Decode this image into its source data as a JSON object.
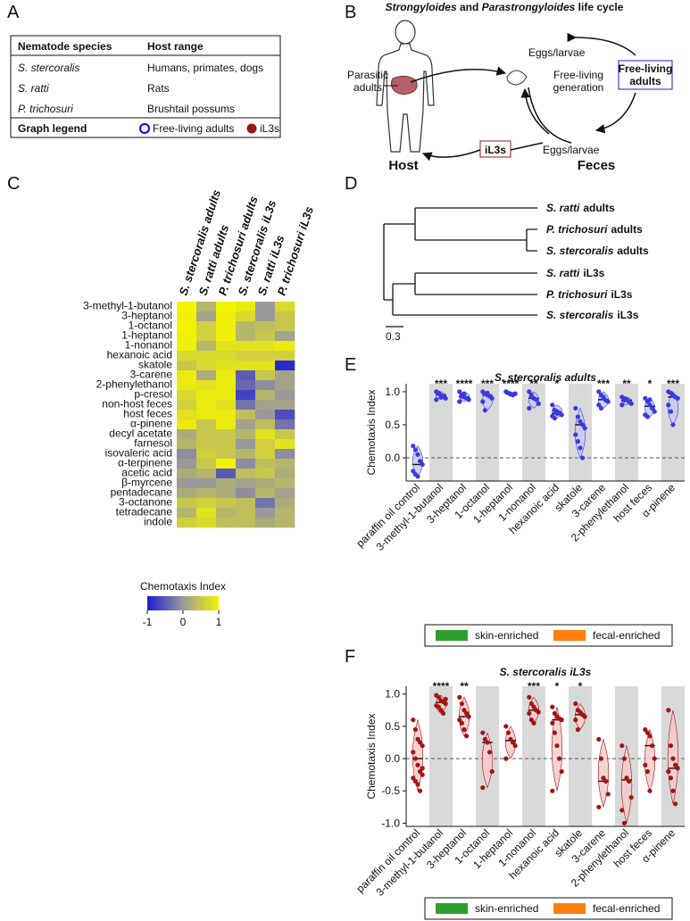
{
  "panel_labels": [
    "A",
    "B",
    "C",
    "D",
    "E",
    "F"
  ],
  "table": {
    "headers": [
      "Nematode species",
      "Host range"
    ],
    "rows": [
      [
        "S. stercoralis",
        "Humans, primates, dogs"
      ],
      [
        "S. ratti",
        "Rats"
      ],
      [
        "P. trichosuri",
        "Brushtail possums"
      ]
    ],
    "legend_title": "Graph legend",
    "legend_items": [
      {
        "label": "Free-living adults",
        "color": "#1a1adb"
      },
      {
        "label": "iL3s",
        "color": "#a31515"
      }
    ]
  },
  "life_cycle": {
    "title_parts": [
      "Strongyloides",
      " and ",
      "Parastrongyloides",
      " life cycle"
    ],
    "parasitic_adults": [
      "Parasitic",
      "adults"
    ],
    "eggs_larvae_top": "Eggs/larvae",
    "free_living_generation": [
      "Free-living",
      "generation"
    ],
    "free_living_adults": [
      "Free-living",
      "adults"
    ],
    "il3s": "iL3s",
    "eggs_larvae_bottom": "Eggs/larvae",
    "host": "Host",
    "feces": "Feces"
  },
  "tree": {
    "leaves": [
      {
        "species": "S. ratti",
        "stage": "adults",
        "color": "#1a1adb"
      },
      {
        "species": "P. trichosuri",
        "stage": "adults",
        "color": "#1a1adb"
      },
      {
        "species": "S. stercoralis",
        "stage": "adults",
        "color": "#1a1adb"
      },
      {
        "species": "S. ratti",
        "stage": "iL3s",
        "color": "#a31515"
      },
      {
        "species": "P. trichosuri",
        "stage": "iL3s",
        "color": "#a31515"
      },
      {
        "species": "S. stercoralis",
        "stage": "iL3s",
        "color": "#a31515"
      }
    ],
    "scale_label": "0.3"
  },
  "chart_data": [
    {
      "type": "heatmap",
      "columns": [
        "S. stercoralis adults",
        "S. ratti adults",
        "P. trichosuri adults",
        "S. stercoralis iL3s",
        "S. ratti iL3s",
        "P. trichosuri iL3s"
      ],
      "column_colors": [
        "#1a1adb",
        "#1a1adb",
        "#1a1adb",
        "#a31515",
        "#a31515",
        "#a31515"
      ],
      "rows": [
        "3-methyl-1-butanol",
        "3-heptanol",
        "1-octanol",
        "1-heptanol",
        "1-nonanol",
        "hexanoic acid",
        "skatole",
        "3-carene",
        "2-phenylethanol",
        "p-cresol",
        "non-host feces",
        "host feces",
        "α-pinene",
        "decyl acetate",
        "farnesol",
        "isovaleric acid",
        "α-terpinene",
        "acetic acid",
        "β-myrcene",
        "pentadecane",
        "3-octanone",
        "tetradecane",
        "indole"
      ],
      "values": [
        [
          1.0,
          0.3,
          1.0,
          0.9,
          0.0,
          0.7
        ],
        [
          0.95,
          0.1,
          0.95,
          0.7,
          0.0,
          0.5
        ],
        [
          1.0,
          0.6,
          0.95,
          0.3,
          0.4,
          0.5
        ],
        [
          0.95,
          0.6,
          0.95,
          0.3,
          0.5,
          0.1
        ],
        [
          0.95,
          0.3,
          0.8,
          0.8,
          0.8,
          0.9
        ],
        [
          0.7,
          0.7,
          0.7,
          0.6,
          0.6,
          0.6
        ],
        [
          0.5,
          0.7,
          0.8,
          0.8,
          0.8,
          -0.9
        ],
        [
          0.9,
          0.2,
          0.9,
          -0.5,
          0.5,
          0.1
        ],
        [
          0.9,
          0.8,
          0.9,
          -0.4,
          -0.1,
          0.1
        ],
        [
          0.7,
          0.9,
          0.9,
          -0.7,
          0.3,
          0.0
        ],
        [
          0.6,
          0.9,
          0.8,
          -0.3,
          0.1,
          0.1
        ],
        [
          0.8,
          0.9,
          0.9,
          0.4,
          0.0,
          -0.6
        ],
        [
          0.9,
          0.5,
          0.9,
          0.1,
          0.4,
          -0.3
        ],
        [
          0.2,
          0.5,
          0.5,
          0.3,
          0.8,
          0.5
        ],
        [
          0.3,
          0.5,
          0.5,
          0.0,
          0.6,
          0.8
        ],
        [
          -0.1,
          0.6,
          0.5,
          0.3,
          0.6,
          -0.1
        ],
        [
          0.0,
          0.5,
          1.0,
          -0.1,
          0.4,
          0.3
        ],
        [
          0.2,
          0.3,
          -0.5,
          0.4,
          0.5,
          0.2
        ],
        [
          0.0,
          0.0,
          0.2,
          0.1,
          0.2,
          0.3
        ],
        [
          0.2,
          0.3,
          0.2,
          -0.1,
          0.3,
          0.1
        ],
        [
          0.5,
          0.6,
          0.5,
          0.4,
          -0.3,
          0.2
        ],
        [
          0.3,
          0.8,
          0.3,
          0.4,
          0.0,
          0.3
        ],
        [
          0.6,
          0.7,
          0.4,
          0.4,
          0.2,
          0.3
        ]
      ],
      "colormap": [
        "#1c1cd4",
        "#9a9a9a",
        "#f4f400"
      ],
      "vlim": [
        -1,
        1
      ],
      "colorbar_title": "Chemotaxis Index",
      "colorbar_ticks": [
        -1,
        0,
        1
      ]
    },
    {
      "type": "violin",
      "title": "S. stercoralis adults",
      "title_color": "#1a1adb",
      "y_label": "Chemotaxis Index",
      "categories": [
        "paraffin oil control",
        "3-methyl-1-butanol",
        "3-heptanol",
        "1-octanol",
        "1-heptanol",
        "1-nonanol",
        "hexanoic acid",
        "skatole",
        "3-carene",
        "2-phenylethanol",
        "host feces",
        "α-pinene"
      ],
      "category_colors": [
        "#000000",
        "#3a9a1a",
        "#3a9a1a",
        "#3a9a1a",
        "#3a9a1a",
        "#3a9a1a",
        "#3a9a1a",
        "#f07800",
        "#f07800",
        "#f07800",
        "#f07800",
        "#f07800"
      ],
      "points": [
        [
          0.18,
          0.12,
          0.05,
          -0.05,
          -0.1,
          -0.2,
          -0.25,
          -0.28
        ],
        [
          1.0,
          0.98,
          0.95,
          0.93,
          0.9,
          0.88,
          0.97,
          0.92
        ],
        [
          1.0,
          0.95,
          0.92,
          0.9,
          0.88,
          0.85,
          0.93,
          0.97
        ],
        [
          1.0,
          0.97,
          0.95,
          0.93,
          0.9,
          0.85,
          0.72,
          0.98
        ],
        [
          1.0,
          0.98,
          0.96,
          0.95,
          0.97
        ],
        [
          1.0,
          0.95,
          0.9,
          0.88,
          0.82,
          0.75,
          0.92
        ],
        [
          0.8,
          0.72,
          0.7,
          0.68,
          0.65,
          0.63,
          0.6,
          0.67
        ],
        [
          0.75,
          0.62,
          0.55,
          0.5,
          0.45,
          0.35,
          0.25,
          0.15,
          0.0
        ],
        [
          1.0,
          0.95,
          0.9,
          0.87,
          0.85,
          0.8,
          0.75,
          0.92
        ],
        [
          0.92,
          0.9,
          0.88,
          0.85,
          0.82,
          0.8,
          0.87
        ],
        [
          0.9,
          0.85,
          0.8,
          0.75,
          0.7,
          0.65,
          0.62,
          0.88
        ],
        [
          1.0,
          0.98,
          0.95,
          0.92,
          0.9,
          0.8,
          0.7,
          0.5
        ]
      ],
      "medians": [
        -0.1,
        0.95,
        0.92,
        0.95,
        0.97,
        0.9,
        0.67,
        0.5,
        0.88,
        0.87,
        0.78,
        0.92
      ],
      "significance": [
        null,
        "***",
        "****",
        "***",
        "****",
        "**",
        "*",
        null,
        "***",
        "**",
        "*",
        "***"
      ],
      "color": "#3a3ae0",
      "fill": "#c9c9f2",
      "ylim": [
        -0.35,
        1.12
      ],
      "yticks": [
        {
          "value": 1.0,
          "label": "1.0"
        },
        0.5,
        {
          "value": 0.0,
          "label": "0.0"
        }
      ],
      "hline": 0,
      "legend": [
        {
          "label": "skin-enriched",
          "color": "#2ca02c"
        },
        {
          "label": "fecal-enriched",
          "color": "#ff7f0e"
        }
      ]
    },
    {
      "type": "violin",
      "title": "S. stercoralis iL3s",
      "title_color": "#a31515",
      "y_label": "Chemotaxis Index",
      "categories": [
        "paraffin oil control",
        "3-methyl-1-butanol",
        "3-heptanol",
        "1-octanol",
        "1-heptanol",
        "1-nonanol",
        "hexanoic acid",
        "skatole",
        "3-carene",
        "2-phenylethanol",
        "host feces",
        "α-pinene"
      ],
      "category_colors": [
        "#000000",
        "#3a9a1a",
        "#3a9a1a",
        "#3a9a1a",
        "#3a9a1a",
        "#3a9a1a",
        "#3a9a1a",
        "#f07800",
        "#f07800",
        "#f07800",
        "#f07800",
        "#f07800"
      ],
      "points": [
        [
          0.6,
          0.45,
          0.3,
          0.25,
          0.2,
          0.1,
          0.0,
          -0.1,
          -0.2,
          -0.25,
          -0.3,
          -0.35,
          -0.4,
          -0.5,
          -0.15
        ],
        [
          0.98,
          0.95,
          0.9,
          0.88,
          0.85,
          0.82,
          0.8,
          0.75,
          0.7,
          0.92
        ],
        [
          0.95,
          0.85,
          0.75,
          0.7,
          0.65,
          0.6,
          0.55,
          0.45,
          0.35
        ],
        [
          0.4,
          0.3,
          0.25,
          0.1,
          -0.2,
          -0.45
        ],
        [
          0.5,
          0.4,
          0.3,
          0.25,
          0.2,
          0.0
        ],
        [
          0.95,
          0.85,
          0.8,
          0.75,
          0.72,
          0.7,
          0.6,
          0.55
        ],
        [
          0.8,
          0.7,
          0.65,
          0.62,
          0.6,
          0.55,
          0.4,
          0.2,
          0.0,
          -0.2,
          -0.5
        ],
        [
          0.85,
          0.75,
          0.72,
          0.68,
          0.65,
          0.6,
          0.45
        ],
        [
          0.3,
          0.0,
          -0.3,
          -0.35,
          -0.55,
          -0.75
        ],
        [
          0.2,
          0.0,
          -0.3,
          -0.35,
          -0.6,
          -0.8,
          -1.0
        ],
        [
          0.45,
          0.4,
          0.35,
          0.2,
          0.0,
          -0.1,
          -0.2,
          -0.5
        ],
        [
          0.75,
          0.2,
          0.0,
          -0.1,
          -0.15,
          -0.2,
          -0.3,
          -0.5,
          -0.7
        ]
      ],
      "medians": [
        0.0,
        0.87,
        0.65,
        0.25,
        0.28,
        0.75,
        0.6,
        0.68,
        -0.35,
        -0.33,
        0.2,
        -0.15
      ],
      "significance": [
        null,
        "****",
        "**",
        null,
        null,
        "***",
        "*",
        "*",
        null,
        null,
        null,
        null
      ],
      "color": "#a31515",
      "fill": "#f6caca",
      "ylim": [
        -1.05,
        1.12
      ],
      "yticks": [
        {
          "value": 1.0,
          "label": "1.0"
        },
        0.5,
        {
          "value": 0.0,
          "label": "0.0"
        },
        -0.5,
        {
          "value": -1.0,
          "label": "-1.0"
        }
      ],
      "hline": 0,
      "legend": [
        {
          "label": "skin-enriched",
          "color": "#2ca02c"
        },
        {
          "label": "fecal-enriched",
          "color": "#ff7f0e"
        }
      ]
    }
  ]
}
